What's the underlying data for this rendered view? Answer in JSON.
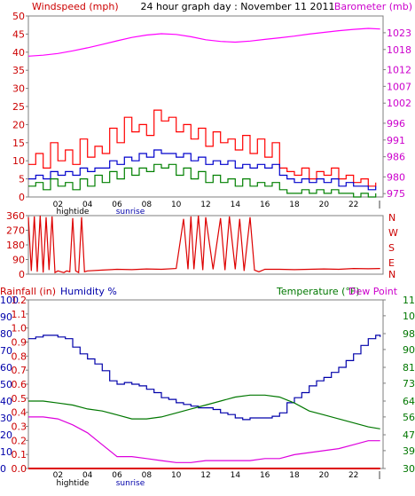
{
  "header": {
    "left_label": "Windspeed (mph)",
    "center_label": "24 hour graph day : November 11 2011",
    "right_label": "Barometer (mb)"
  },
  "colors": {
    "frame": "#7f7f7f",
    "wind_gust": "#ff0000",
    "wind_avg": "#0000cc",
    "wind_low": "#008000",
    "barometer": "#ff00ff",
    "direction": "#dd0000",
    "humidity": "#0000aa",
    "temperature": "#007700",
    "dew_point": "#dd00dd",
    "rainfall": "#dd0000",
    "left_axis_text": "#cc0000",
    "right_axis_text": "#cc00cc",
    "humidity_text": "#0000aa",
    "temp_text": "#007700"
  },
  "x_axis": {
    "ticks": [
      "02",
      "04",
      "06",
      "08",
      "10",
      "12",
      "14",
      "16",
      "18",
      "20",
      "22",
      "|"
    ],
    "sub_labels": [
      "hightide",
      "sunrise"
    ]
  },
  "labels_bottom": {
    "rainfall": "Rainfall (in)",
    "humidity": "Humidity %",
    "temperature": "Temperature (°F)",
    "dew_point": "Dew Point"
  },
  "chart_data": [
    {
      "type": "line",
      "title": "24 hour graph day : November 11 2011",
      "x_unit": "hour",
      "x_range": [
        0,
        24
      ],
      "left_axis": {
        "label": "Windspeed (mph)",
        "range": [
          0,
          50
        ],
        "ticks": [
          "0",
          "5",
          "10",
          "15",
          "20",
          "25",
          "30",
          "35",
          "40",
          "45",
          "50"
        ]
      },
      "right_axis": {
        "label": "Barometer (mb)",
        "range": [
          974,
          1028
        ],
        "ticks": [
          "975",
          "980",
          "986",
          "991",
          "996",
          "1002",
          "1007",
          "1012",
          "1018",
          "1023"
        ]
      },
      "series": [
        {
          "axis": "left",
          "x": [
            0,
            0.5,
            1,
            1.5,
            2,
            2.5,
            3,
            3.5,
            4,
            4.5,
            5,
            5.5,
            6,
            6.5,
            7,
            7.5,
            8,
            8.5,
            9,
            9.5,
            10,
            10.5,
            11,
            11.5,
            12,
            12.5,
            13,
            13.5,
            14,
            14.5,
            15,
            15.5,
            16,
            16.5,
            17,
            17.5,
            18,
            18.5,
            19,
            19.5,
            20,
            20.5,
            21,
            21.5,
            22,
            22.5,
            23,
            23.5
          ],
          "values": [
            9,
            12,
            8,
            15,
            10,
            13,
            9,
            16,
            11,
            14,
            12,
            19,
            15,
            22,
            18,
            20,
            17,
            24,
            21,
            22,
            18,
            20,
            16,
            19,
            14,
            18,
            15,
            16,
            13,
            17,
            12,
            16,
            11,
            15,
            8,
            7,
            6,
            8,
            5,
            7,
            6,
            8,
            5,
            6,
            4,
            5,
            3,
            4
          ]
        },
        {
          "axis": "left",
          "x": [
            0,
            0.5,
            1,
            1.5,
            2,
            2.5,
            3,
            3.5,
            4,
            4.5,
            5,
            5.5,
            6,
            6.5,
            7,
            7.5,
            8,
            8.5,
            9,
            9.5,
            10,
            10.5,
            11,
            11.5,
            12,
            12.5,
            13,
            13.5,
            14,
            14.5,
            15,
            15.5,
            16,
            16.5,
            17,
            17.5,
            18,
            18.5,
            19,
            19.5,
            20,
            20.5,
            21,
            21.5,
            22,
            22.5,
            23,
            23.5
          ],
          "values": [
            5,
            6,
            5,
            7,
            6,
            7,
            6,
            8,
            7,
            8,
            8,
            10,
            9,
            11,
            10,
            12,
            11,
            13,
            12,
            12,
            11,
            12,
            10,
            11,
            9,
            10,
            9,
            10,
            8,
            9,
            8,
            9,
            8,
            9,
            6,
            5,
            4,
            5,
            4,
            5,
            4,
            5,
            3,
            4,
            3,
            3,
            2,
            3
          ]
        },
        {
          "axis": "left",
          "x": [
            0,
            0.5,
            1,
            1.5,
            2,
            2.5,
            3,
            3.5,
            4,
            4.5,
            5,
            5.5,
            6,
            6.5,
            7,
            7.5,
            8,
            8.5,
            9,
            9.5,
            10,
            10.5,
            11,
            11.5,
            12,
            12.5,
            13,
            13.5,
            14,
            14.5,
            15,
            15.5,
            16,
            16.5,
            17,
            17.5,
            18,
            18.5,
            19,
            19.5,
            20,
            20.5,
            21,
            21.5,
            22,
            22.5,
            23,
            23.5
          ],
          "values": [
            3,
            4,
            2,
            5,
            3,
            4,
            2,
            5,
            3,
            6,
            4,
            7,
            5,
            8,
            6,
            8,
            7,
            9,
            8,
            9,
            6,
            8,
            5,
            7,
            4,
            6,
            4,
            5,
            3,
            5,
            3,
            4,
            3,
            4,
            2,
            1,
            1,
            2,
            1,
            2,
            1,
            2,
            1,
            1,
            0,
            1,
            0,
            1
          ]
        },
        {
          "axis": "right",
          "x": [
            0,
            1,
            2,
            3,
            4,
            5,
            6,
            7,
            8,
            9,
            10,
            11,
            12,
            13,
            14,
            15,
            16,
            17,
            18,
            19,
            20,
            21,
            22,
            23,
            23.8
          ],
          "values": [
            1016,
            1016.3,
            1016.8,
            1017.6,
            1018.5,
            1019.5,
            1020.6,
            1021.6,
            1022.3,
            1022.7,
            1022.5,
            1021.8,
            1020.9,
            1020.4,
            1020.2,
            1020.5,
            1021,
            1021.5,
            1022,
            1022.6,
            1023.1,
            1023.6,
            1024,
            1024.3,
            1024.1
          ]
        }
      ]
    },
    {
      "type": "scatter",
      "title": "",
      "x_unit": "hour",
      "x_range": [
        0,
        24
      ],
      "left_axis": {
        "label": "",
        "range": [
          0,
          360
        ],
        "ticks": [
          "0",
          "90",
          "180",
          "270",
          "360"
        ]
      },
      "right_axis": {
        "label": "",
        "ticks": [
          "N",
          "W",
          "S",
          "E",
          "N"
        ]
      },
      "series": [
        {
          "axis": "left",
          "x": [
            0,
            0.2,
            0.4,
            0.6,
            0.8,
            1.0,
            1.2,
            1.4,
            1.6,
            1.8,
            2.0,
            2.2,
            2.4,
            2.6,
            2.8,
            3.0,
            3.2,
            3.4,
            3.6,
            3.8,
            4,
            5,
            6,
            7,
            8,
            9,
            10,
            10.5,
            10.8,
            11,
            11.2,
            11.5,
            11.8,
            12,
            12.5,
            13,
            13.3,
            13.6,
            14,
            14.3,
            14.6,
            15,
            15.3,
            15.6,
            16,
            17,
            18,
            19,
            20,
            21,
            22,
            23,
            23.8
          ],
          "values": [
            350,
            20,
            355,
            15,
            360,
            10,
            350,
            25,
            355,
            10,
            20,
            15,
            10,
            20,
            15,
            345,
            20,
            10,
            350,
            15,
            20,
            25,
            30,
            28,
            32,
            30,
            35,
            340,
            30,
            355,
            30,
            360,
            25,
            350,
            30,
            345,
            25,
            355,
            30,
            340,
            20,
            350,
            25,
            15,
            30,
            30,
            28,
            30,
            32,
            30,
            35,
            33,
            35
          ]
        }
      ]
    },
    {
      "type": "line",
      "title": "",
      "x_unit": "hour",
      "x_range": [
        0,
        24
      ],
      "axes": {
        "rainfall_in": {
          "label": "Rainfall (in)",
          "range": [
            0,
            1.2
          ],
          "ticks": [
            "0.0",
            "0.1",
            "0.2",
            "0.3",
            "0.4",
            "0.5",
            "0.6",
            "0.7",
            "0.8",
            "0.9",
            "1.0",
            "1.1",
            "1.2"
          ]
        },
        "humidity_pct": {
          "label": "Humidity %",
          "range": [
            0,
            100
          ],
          "ticks": [
            "0",
            "10",
            "20",
            "30",
            "40",
            "50",
            "60",
            "70",
            "80",
            "90",
            "100"
          ]
        },
        "temperature_f": {
          "label": "Temperature (°F)",
          "range": [
            30,
            115
          ],
          "ticks": [
            "30",
            "39",
            "47",
            "56",
            "64",
            "73",
            "81",
            "90",
            "98",
            "107",
            "115"
          ]
        }
      },
      "series": [
        {
          "axis": "humidity_pct",
          "x": [
            0,
            0.5,
            1,
            1.5,
            2,
            2.5,
            3,
            3.5,
            4,
            4.5,
            5,
            5.5,
            6,
            6.5,
            7,
            7.5,
            8,
            8.5,
            9,
            9.5,
            10,
            10.5,
            11,
            11.5,
            12,
            12.5,
            13,
            13.5,
            14,
            14.5,
            15,
            15.5,
            16,
            16.5,
            17,
            17.5,
            18,
            18.5,
            19,
            19.5,
            20,
            20.5,
            21,
            21.5,
            22,
            22.5,
            23,
            23.5,
            23.8
          ],
          "values": [
            77,
            78,
            79,
            79,
            78,
            77,
            72,
            68,
            65,
            62,
            58,
            52,
            50,
            51,
            50,
            49,
            47,
            45,
            42,
            41,
            39,
            38,
            37,
            36,
            36,
            35,
            33,
            32,
            30,
            29,
            30,
            30,
            30,
            31,
            33,
            39,
            42,
            45,
            49,
            52,
            54,
            57,
            60,
            64,
            68,
            73,
            77,
            79,
            78
          ]
        },
        {
          "axis": "temperature_f",
          "x": [
            0,
            1,
            2,
            3,
            4,
            5,
            6,
            7,
            8,
            9,
            10,
            11,
            12,
            13,
            14,
            15,
            16,
            17,
            18,
            19,
            20,
            21,
            22,
            23,
            23.8
          ],
          "values": [
            64,
            64,
            63,
            62,
            60,
            59,
            57,
            55,
            55,
            56,
            58,
            60,
            62,
            64,
            66,
            67,
            67,
            66,
            63,
            59,
            57,
            55,
            53,
            51,
            50
          ]
        },
        {
          "axis": "temperature_f",
          "x": [
            0,
            1,
            2,
            3,
            4,
            5,
            6,
            7,
            8,
            9,
            10,
            11,
            12,
            13,
            14,
            15,
            16,
            17,
            18,
            19,
            20,
            21,
            22,
            23,
            23.8
          ],
          "values": [
            56,
            56,
            55,
            52,
            48,
            42,
            36,
            36,
            35,
            34,
            33,
            33,
            34,
            34,
            34,
            34,
            35,
            35,
            37,
            38,
            39,
            40,
            42,
            44,
            44
          ]
        },
        {
          "axis": "rainfall_in",
          "x": [
            0,
            23.8
          ],
          "values": [
            0,
            0
          ]
        }
      ]
    }
  ]
}
